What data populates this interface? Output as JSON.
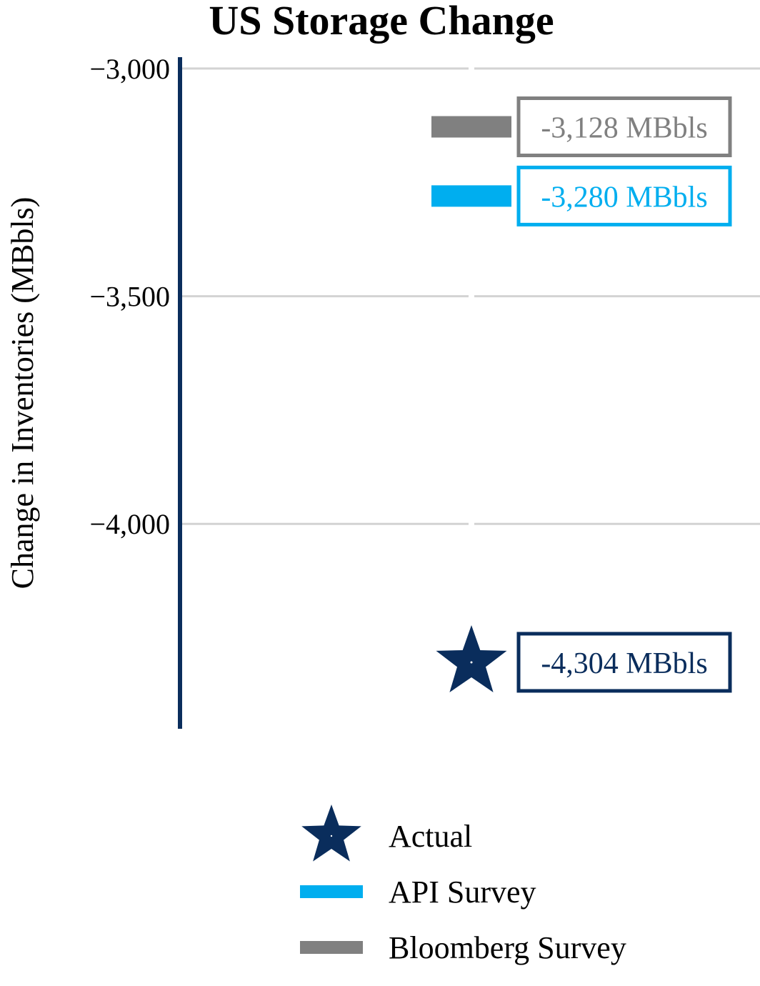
{
  "colors": {
    "actual": "#0a2d5c",
    "api": "#00aeef",
    "bloomberg": "#808080",
    "axis": "#0a2d5c",
    "grid": "#d3d3d3"
  },
  "chart_data": {
    "type": "scatter",
    "title": "US Storage Change",
    "xlabel": "",
    "ylabel": "Change in Inventories (MBbls)",
    "ylim": [
      -4450,
      -2975
    ],
    "yticks": [
      -3000,
      -3500,
      -4000
    ],
    "ytick_labels": [
      "−3,000",
      "−3,500",
      "−4,000"
    ],
    "grid": true,
    "legend_position": "bottom",
    "series": [
      {
        "name": "Actual",
        "marker": "star",
        "color_key": "actual",
        "value": -4304,
        "label": "-4,304 MBbls"
      },
      {
        "name": "API Survey",
        "marker": "bar",
        "color_key": "api",
        "value": -3280,
        "label": "-3,280 MBbls"
      },
      {
        "name": "Bloomberg Survey",
        "marker": "bar",
        "color_key": "bloomberg",
        "value": -3128,
        "label": "-3,128 MBbls"
      }
    ],
    "legend": [
      "Actual",
      "API Survey",
      "Bloomberg Survey"
    ]
  }
}
